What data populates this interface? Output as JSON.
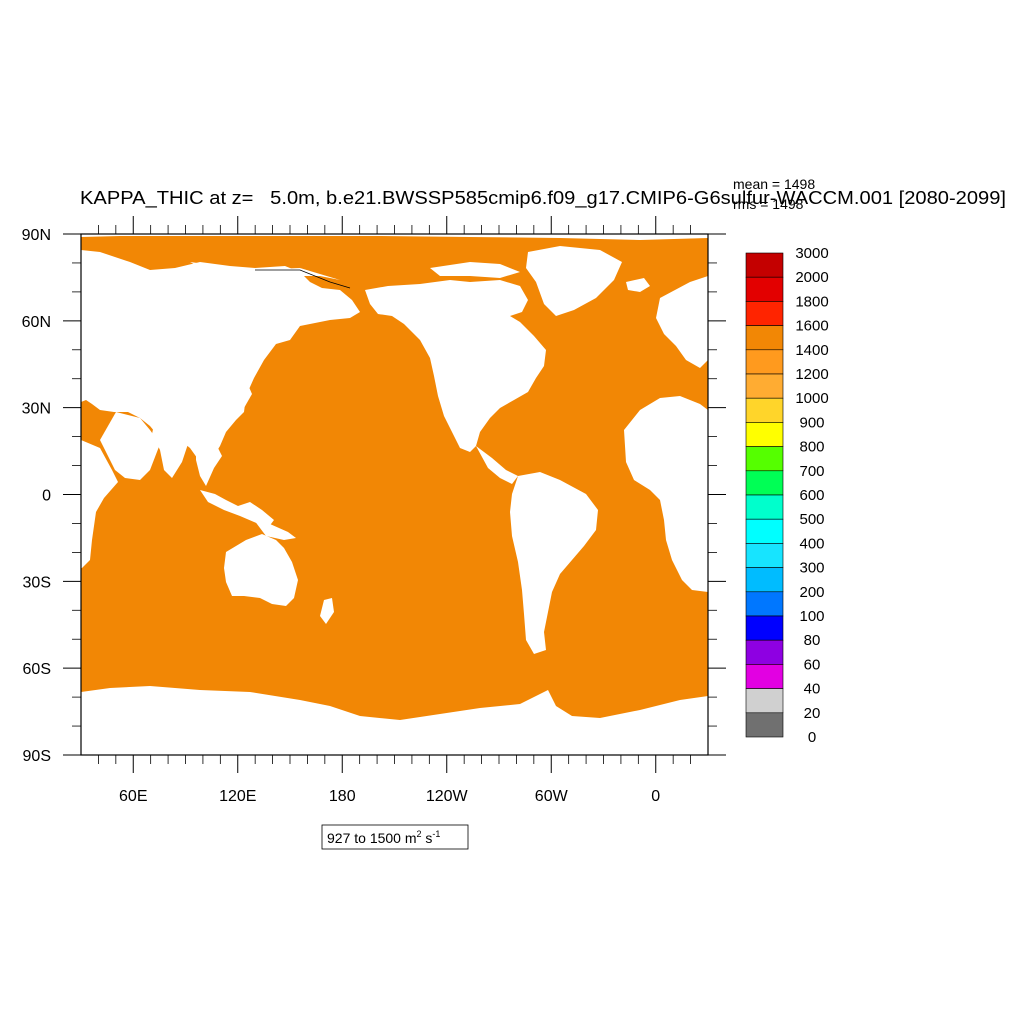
{
  "title": "KAPPA_THIC at z=   5.0m, b.e21.BWSSP585cmip6.f09_g17.CMIP6-G6sulfur-WACCM.001 [2080-2099]",
  "stats": {
    "mean": "mean = 1498",
    "rms": "rms = 1498"
  },
  "range_label": {
    "prefix": "927 to 1500 m",
    "exp1": "2",
    "mid": " s",
    "exp2": "-1"
  },
  "colors": {
    "ocean": "#f28705",
    "land": "#ffffff",
    "coast": "#000000"
  },
  "chart_data": {
    "type": "heatmap",
    "variable": "KAPPA_THIC",
    "units": "m2 s-1",
    "data_min": 927,
    "data_max": 1500,
    "mean": 1498,
    "rms": 1498,
    "lat_range": [
      -90,
      90
    ],
    "lon_center": 210,
    "lat_ticks": [
      "90N",
      "60N",
      "30N",
      "0",
      "30S",
      "60S",
      "90S"
    ],
    "lon_ticks": [
      "60E",
      "120E",
      "180",
      "120W",
      "60W",
      "0"
    ],
    "colorbar": {
      "labels": [
        "3000",
        "2000",
        "1800",
        "1600",
        "1400",
        "1200",
        "1000",
        "900",
        "800",
        "700",
        "600",
        "500",
        "400",
        "300",
        "200",
        "100",
        "80",
        "60",
        "40",
        "20",
        "0"
      ],
      "colors": [
        "#c40000",
        "#e30000",
        "#ff2400",
        "#f28705",
        "#ff9a1e",
        "#ffac32",
        "#ffd52a",
        "#ffff00",
        "#55ff00",
        "#00ff55",
        "#00ffcc",
        "#00ffff",
        "#17e4ff",
        "#00bcff",
        "#0077ff",
        "#0000ff",
        "#8e00e2",
        "#e200e2",
        "#d0d0d0",
        "#707070"
      ]
    }
  }
}
